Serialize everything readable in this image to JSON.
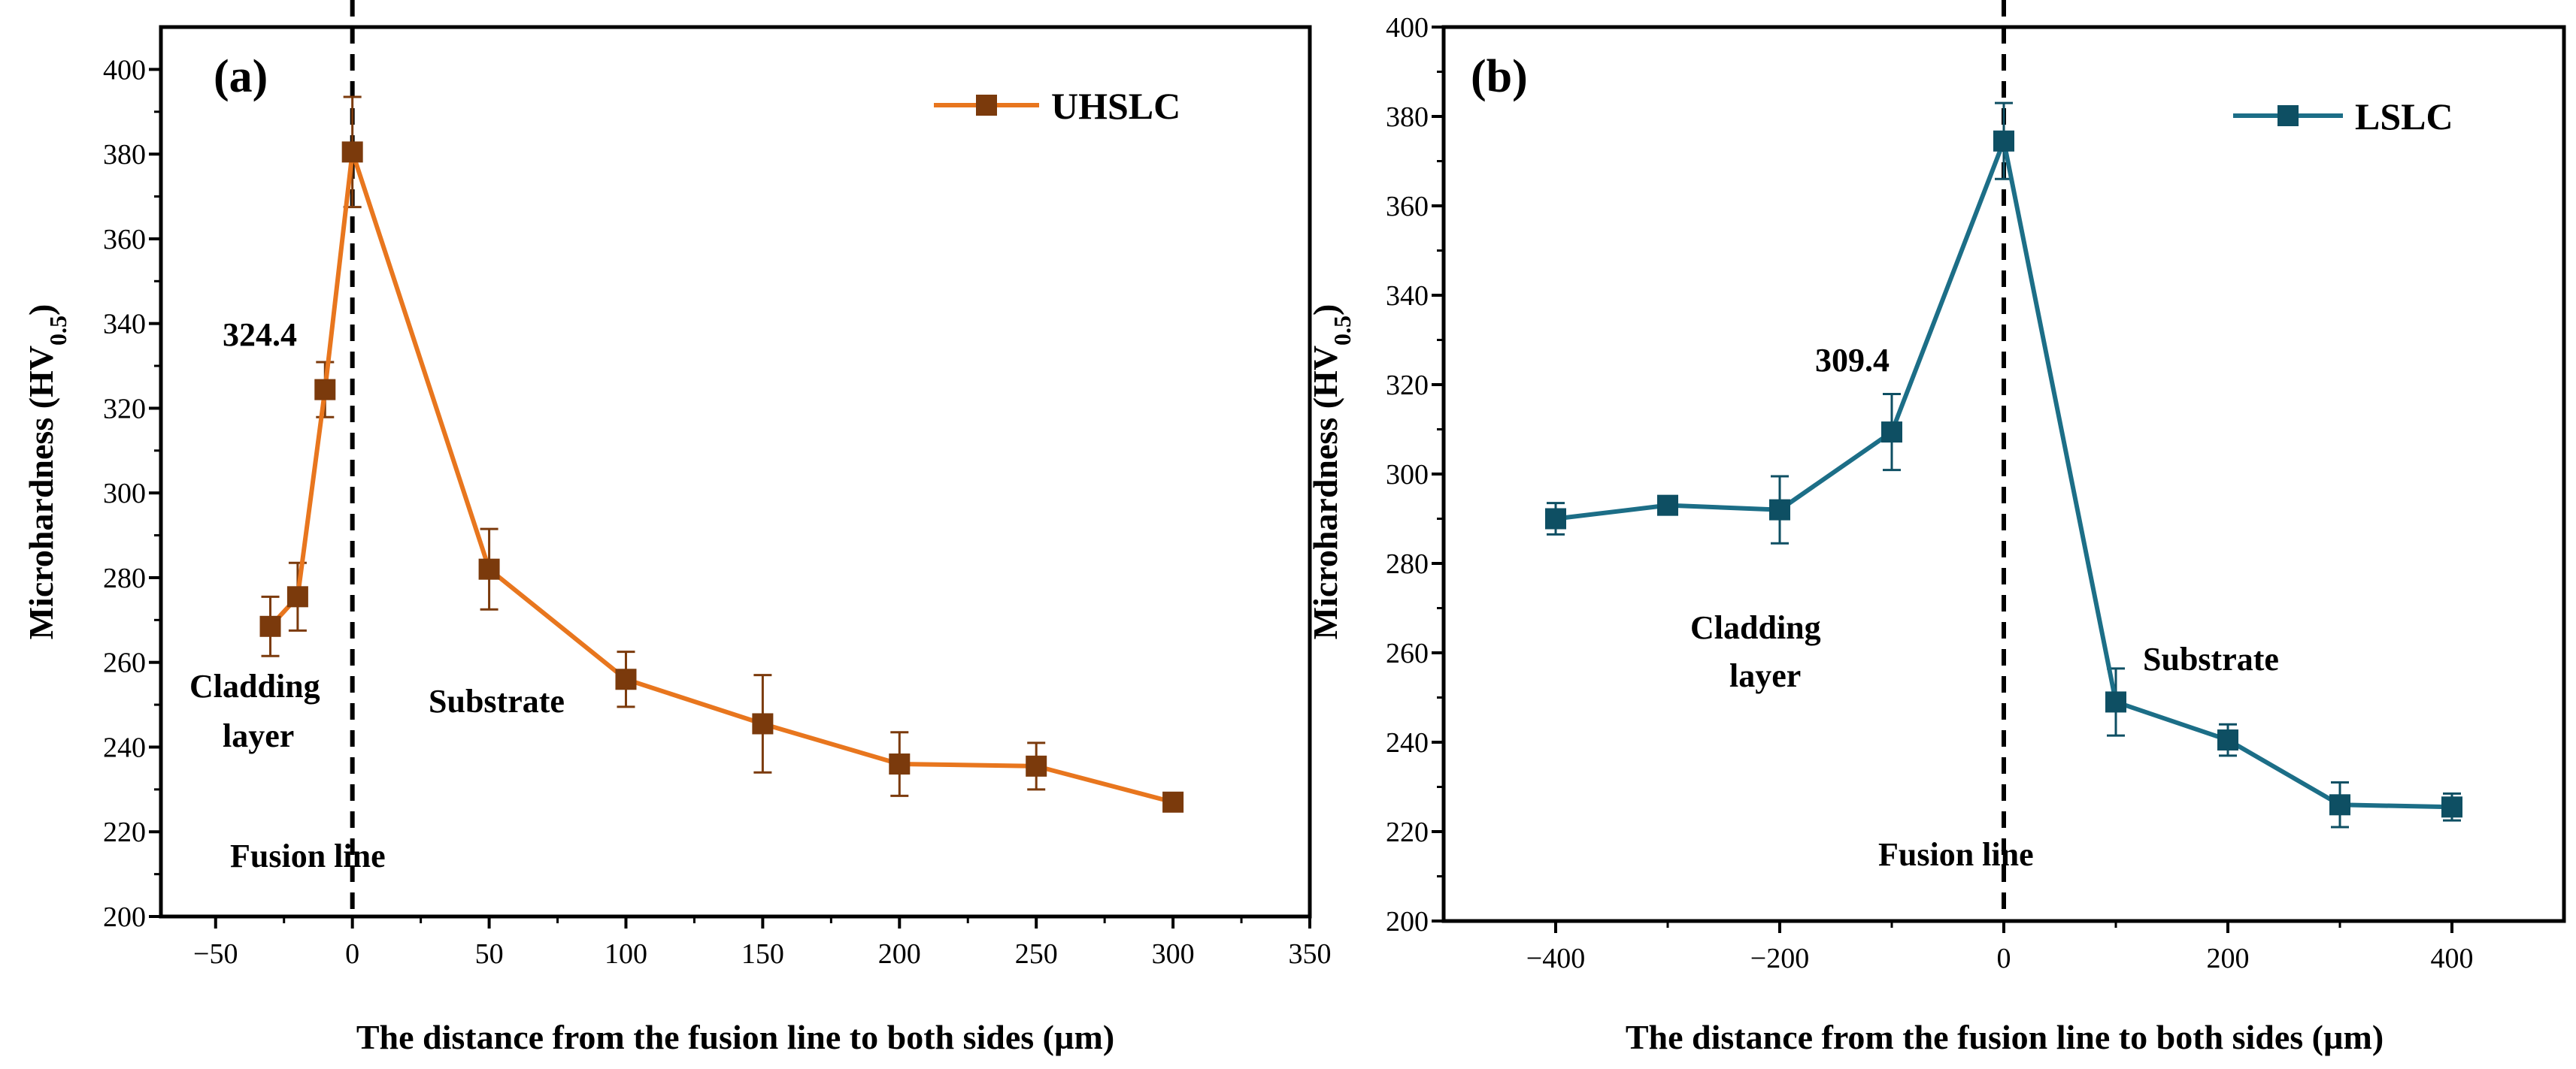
{
  "chart_data": [
    {
      "panel_label": "(a)",
      "type": "line",
      "xlabel": "The distance from the fusion line to both sides (µm)",
      "ylabel_main": "Microhardness (HV",
      "ylabel_sub": "0.5",
      "ylabel_close": ")",
      "xlim": [
        -70,
        350
      ],
      "ylim": [
        200,
        410
      ],
      "xticks": [
        -50,
        0,
        50,
        100,
        150,
        200,
        250,
        300,
        350
      ],
      "xtick_labels": [
        "−50",
        "0",
        "50",
        "100",
        "150",
        "200",
        "250",
        "300",
        "350"
      ],
      "yticks": [
        200,
        220,
        240,
        260,
        280,
        300,
        320,
        340,
        360,
        380,
        400
      ],
      "series": [
        {
          "name": "UHSLC",
          "color": "#E8761E",
          "marker_color": "#7B3A0C",
          "x": [
            -30,
            -20,
            -10,
            0,
            50,
            100,
            150,
            200,
            250,
            300
          ],
          "y": [
            268.5,
            275.5,
            324.4,
            380.5,
            282,
            256,
            245.5,
            236,
            235.5,
            227
          ],
          "err": [
            7,
            8,
            6.5,
            13,
            9.5,
            6.5,
            11.5,
            7.5,
            5.5,
            1.5
          ]
        }
      ],
      "fusion_x": 0,
      "annotations": {
        "peak_value": "324.4",
        "cladding_line1": "Cladding",
        "cladding_line2": "layer",
        "substrate": "Substrate",
        "fusion": "Fusion line"
      }
    },
    {
      "panel_label": "(b)",
      "type": "line",
      "xlabel": "The distance from the fusion line to both sides (µm)",
      "ylabel_main": "Microhardness (HV",
      "ylabel_sub": "0.5",
      "ylabel_close": ")",
      "xlim": [
        -500,
        500
      ],
      "ylim": [
        200,
        400
      ],
      "xticks": [
        -400,
        -200,
        0,
        200,
        400
      ],
      "xtick_labels": [
        "−400",
        "−200",
        "0",
        "200",
        "400"
      ],
      "yticks": [
        200,
        220,
        240,
        260,
        280,
        300,
        320,
        340,
        360,
        380,
        400
      ],
      "series": [
        {
          "name": "LSLC",
          "color": "#1C6E87",
          "marker_color": "#0E4F63",
          "x": [
            -400,
            -300,
            -200,
            -100,
            0,
            100,
            200,
            300,
            400
          ],
          "y": [
            290,
            293,
            292,
            309.4,
            374.5,
            249,
            240.5,
            226,
            225.5
          ],
          "err": [
            3.5,
            1.5,
            7.5,
            8.5,
            8.5,
            7.5,
            3.5,
            5,
            3
          ]
        }
      ],
      "fusion_x": 0,
      "annotations": {
        "peak_value": "309.4",
        "cladding_line1": "Cladding",
        "cladding_line2": "layer",
        "substrate": "Substrate",
        "fusion": "Fusion line"
      }
    }
  ]
}
